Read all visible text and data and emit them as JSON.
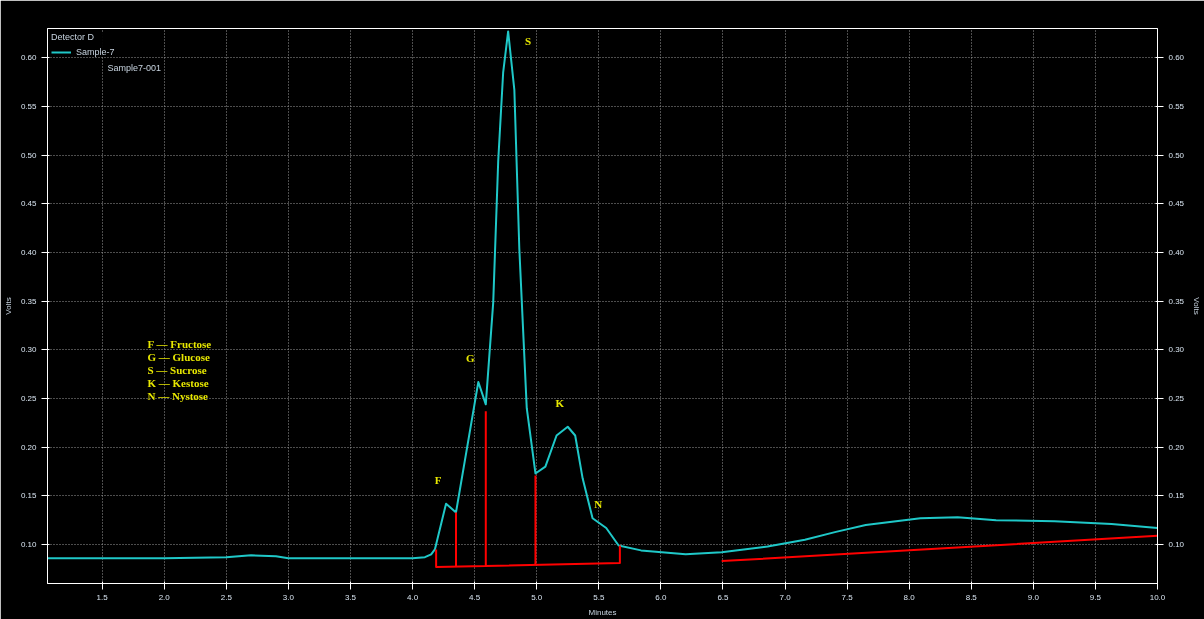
{
  "chart_data": {
    "type": "line",
    "xlabel": "Minutes",
    "ylabel": "Volts",
    "y2label": "Volts",
    "legend_title": "Detector D",
    "xlim": [
      1.06,
      10.0
    ],
    "ylim": [
      0.06,
      0.63
    ],
    "y2lim": [
      0.06,
      0.63
    ],
    "xticks": [
      1.5,
      {
        "value": 2,
        "label": "2.0"
      },
      2.5,
      {
        "value": 3,
        "label": "3.0"
      },
      3.5,
      {
        "value": 4,
        "label": "4.0"
      },
      4.5,
      {
        "value": 5,
        "label": "5.0"
      },
      5.5,
      {
        "value": 6,
        "label": "6.0"
      },
      6.5,
      {
        "value": 7,
        "label": "7.0"
      },
      7.5,
      {
        "value": 8,
        "label": "8.0"
      },
      8.5,
      {
        "value": 9,
        "label": "9.0"
      },
      9.5,
      {
        "value": 10,
        "label": "10.0"
      }
    ],
    "yticks": [
      {
        "value": 0.1,
        "label": "0.10"
      },
      0.15,
      {
        "value": 0.2,
        "label": "0.20"
      },
      0.25,
      {
        "value": 0.3,
        "label": "0.30"
      },
      0.35,
      {
        "value": 0.4,
        "label": "0.40"
      },
      0.45,
      {
        "value": 0.5,
        "label": "0.50"
      },
      0.55,
      {
        "value": 0.6,
        "label": "0.60"
      }
    ],
    "y2ticks": [
      {
        "value": 0.1,
        "label": "0.10"
      },
      0.15,
      {
        "value": 0.2,
        "label": "0.20"
      },
      0.25,
      {
        "value": 0.3,
        "label": "0.30"
      },
      0.35,
      {
        "value": 0.4,
        "label": "0.40"
      },
      0.45,
      {
        "value": 0.5,
        "label": "0.50"
      },
      0.55,
      {
        "value": 0.6,
        "label": "0.60"
      }
    ],
    "grid": true,
    "legend": "top left",
    "line_style": "solid",
    "series": [
      {
        "name": "Sample-7",
        "color": "#1fc8c8",
        "x": [
          1.06,
          2.0,
          2.5,
          2.7,
          2.9,
          3.0,
          4.0,
          4.1,
          4.15,
          4.18,
          4.27,
          4.35,
          4.53,
          4.59,
          4.65,
          4.69,
          4.73,
          4.77,
          4.82,
          4.86,
          4.92,
          4.99,
          5.07,
          5.16,
          5.25,
          5.31,
          5.37,
          5.45,
          5.56,
          5.66,
          5.84,
          6.2,
          6.49,
          6.86,
          7.16,
          7.41,
          7.65,
          8.09,
          8.39,
          8.7,
          9.17,
          9.63,
          10.0
        ],
        "values": [
          0.086,
          0.086,
          0.087,
          0.089,
          0.088,
          0.086,
          0.086,
          0.087,
          0.09,
          0.095,
          0.142,
          0.133,
          0.267,
          0.244,
          0.349,
          0.494,
          0.585,
          0.627,
          0.567,
          0.404,
          0.24,
          0.173,
          0.18,
          0.212,
          0.221,
          0.212,
          0.168,
          0.127,
          0.117,
          0.099,
          0.094,
          0.09,
          0.092,
          0.098,
          0.105,
          0.113,
          0.12,
          0.127,
          0.128,
          0.125,
          0.124,
          0.121,
          0.117
        ]
      },
      {
        "color": "#ff0000",
        "x": [
          4.19,
          4.19,
          5.67,
          5.67,
          null,
          4.35,
          4.35,
          null,
          4.59,
          4.59,
          null,
          4.99,
          4.99,
          null,
          6.49,
          10.0
        ],
        "values": [
          0.095,
          0.077,
          0.081,
          0.099,
          null,
          0.077,
          0.133,
          null,
          0.078,
          0.237,
          null,
          0.079,
          0.171,
          null,
          0.083,
          0.109
        ]
      }
    ],
    "annotations": [
      "Sample7-001",
      "F — Fructose",
      "G — Glucose",
      "S — Sucrose",
      "K — Kestose",
      "N — Nystose",
      {
        "text": "F",
        "x": 4.27,
        "y": 0.142
      },
      {
        "text": "G",
        "x": 4.53,
        "y": 0.267
      },
      {
        "text": "S",
        "x": 4.77,
        "y": 0.627
      },
      {
        "text": "K",
        "x": 5.25,
        "y": 0.221
      },
      {
        "text": "N",
        "x": 5.56,
        "y": 0.117
      }
    ]
  }
}
